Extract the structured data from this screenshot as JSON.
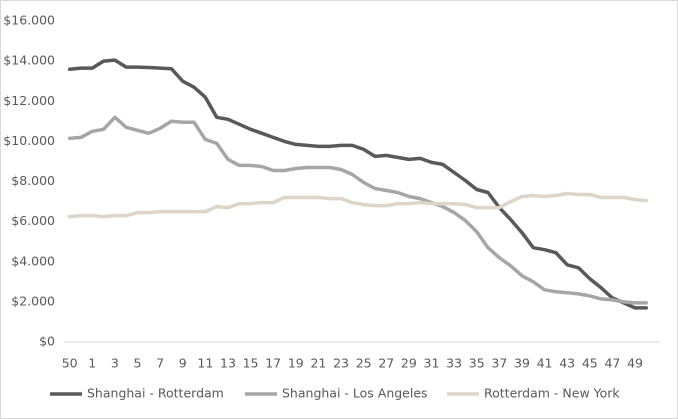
{
  "chart_data": {
    "type": "line",
    "categories": [
      "50",
      null,
      "1",
      null,
      "3",
      null,
      "5",
      null,
      "7",
      null,
      "9",
      null,
      "11",
      null,
      "13",
      null,
      "15",
      null,
      "17",
      null,
      "19",
      null,
      "21",
      null,
      "23",
      null,
      "25",
      null,
      "27",
      null,
      "29",
      null,
      "31",
      null,
      "33",
      null,
      "35",
      null,
      "37",
      null,
      "39",
      null,
      "41",
      null,
      "43",
      null,
      "45",
      null,
      "47",
      null,
      "49",
      null
    ],
    "series": [
      {
        "name": "Shanghai - Rotterdam",
        "color": "#595959",
        "values": [
          13600,
          13650,
          13650,
          14000,
          14050,
          13700,
          13700,
          13680,
          13650,
          13620,
          13000,
          12700,
          12200,
          11200,
          11100,
          10850,
          10600,
          10400,
          10200,
          10000,
          9850,
          9800,
          9750,
          9750,
          9800,
          9800,
          9600,
          9250,
          9300,
          9200,
          9100,
          9150,
          8950,
          8850,
          8450,
          8050,
          7600,
          7450,
          6700,
          6100,
          5450,
          4700,
          4600,
          4450,
          3850,
          3700,
          3150,
          2700,
          2200,
          1950,
          1700,
          1700
        ]
      },
      {
        "name": "Shanghai - Los Angeles",
        "color": "#a6a6a6",
        "values": [
          10150,
          10200,
          10500,
          10600,
          11200,
          10700,
          10550,
          10400,
          10650,
          11000,
          10950,
          10950,
          10100,
          9900,
          9100,
          8800,
          8800,
          8750,
          8550,
          8550,
          8650,
          8700,
          8700,
          8700,
          8600,
          8350,
          7950,
          7650,
          7550,
          7450,
          7250,
          7150,
          6950,
          6750,
          6450,
          6050,
          5500,
          4700,
          4200,
          3800,
          3300,
          3000,
          2600,
          2500,
          2450,
          2400,
          2300,
          2150,
          2100,
          2000,
          1950,
          1950
        ]
      },
      {
        "name": "Rotterdam - New York",
        "color": "#ddd5c8",
        "values": [
          6250,
          6300,
          6300,
          6250,
          6300,
          6300,
          6450,
          6450,
          6500,
          6500,
          6500,
          6500,
          6500,
          6750,
          6700,
          6900,
          6900,
          6950,
          6950,
          7200,
          7200,
          7200,
          7200,
          7150,
          7150,
          6950,
          6850,
          6800,
          6800,
          6900,
          6900,
          6950,
          6900,
          6900,
          6900,
          6850,
          6700,
          6700,
          6700,
          7000,
          7250,
          7300,
          7250,
          7300,
          7400,
          7350,
          7350,
          7200,
          7200,
          7200,
          7100,
          7050
        ]
      }
    ],
    "ylim": [
      0,
      16000
    ],
    "yticks": [
      {
        "value": 0,
        "label": "$0"
      },
      {
        "value": 2000,
        "label": "$2.000"
      },
      {
        "value": 4000,
        "label": "$4.000"
      },
      {
        "value": 6000,
        "label": "$6.000"
      },
      {
        "value": 8000,
        "label": "$8.000"
      },
      {
        "value": 10000,
        "label": "$10.000"
      },
      {
        "value": 12000,
        "label": "$12.000"
      },
      {
        "value": 14000,
        "label": "$14.000"
      },
      {
        "value": 16000,
        "label": "$16.000"
      }
    ],
    "grid": false,
    "legend": "bottom"
  }
}
